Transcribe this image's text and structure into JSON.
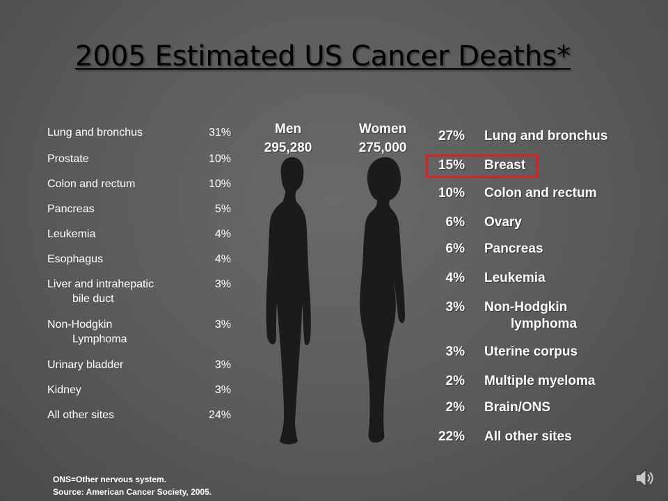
{
  "slide": {
    "title": "2005 Estimated US Cancer Deaths*"
  },
  "men": {
    "label": "Men",
    "total": "295,280",
    "rows": [
      {
        "site": "Lung and bronchus",
        "site_cont": "",
        "pct": "31%"
      },
      {
        "site": "Prostate",
        "site_cont": "",
        "pct": "10%"
      },
      {
        "site": "Colon and rectum",
        "site_cont": "",
        "pct": "10%"
      },
      {
        "site": "Pancreas",
        "site_cont": "",
        "pct": "5%"
      },
      {
        "site": "Leukemia",
        "site_cont": "",
        "pct": "4%"
      },
      {
        "site": "Esophagus",
        "site_cont": "",
        "pct": "4%"
      },
      {
        "site": "Liver and intrahepatic",
        "site_cont": "bile duct",
        "pct": "3%"
      },
      {
        "site": "Non-Hodgkin",
        "site_cont": "Lymphoma",
        "pct": "3%"
      },
      {
        "site": "Urinary bladder",
        "site_cont": "",
        "pct": "3%"
      },
      {
        "site": "Kidney",
        "site_cont": "",
        "pct": "3%"
      },
      {
        "site": "All other sites",
        "site_cont": "",
        "pct": "24%"
      }
    ]
  },
  "women": {
    "label": "Women",
    "total": "275,000",
    "highlight_color": "#e02020",
    "rows": [
      {
        "pct": "27%",
        "site": "Lung and bronchus",
        "site_cont": ""
      },
      {
        "pct": "15%",
        "site": "Breast",
        "site_cont": ""
      },
      {
        "pct": "10%",
        "site": "Colon and rectum",
        "site_cont": ""
      },
      {
        "pct": "6%",
        "site": "Ovary",
        "site_cont": ""
      },
      {
        "pct": "6%",
        "site": "Pancreas",
        "site_cont": ""
      },
      {
        "pct": "4%",
        "site": "Leukemia",
        "site_cont": ""
      },
      {
        "pct": "3%",
        "site": "Non-Hodgkin",
        "site_cont": "lymphoma"
      },
      {
        "pct": "3%",
        "site": "Uterine corpus",
        "site_cont": ""
      },
      {
        "pct": "2%",
        "site": "Multiple myeloma",
        "site_cont": ""
      },
      {
        "pct": "2%",
        "site": "Brain/ONS",
        "site_cont": ""
      },
      {
        "pct": "22%",
        "site": "All other sites",
        "site_cont": ""
      }
    ]
  },
  "footnote": {
    "line1": "ONS=Other nervous system.",
    "line2": "Source: American Cancer Society, 2005."
  },
  "icons": {
    "speaker": "speaker-icon",
    "male": "male-silhouette-icon",
    "female": "female-silhouette-icon"
  }
}
